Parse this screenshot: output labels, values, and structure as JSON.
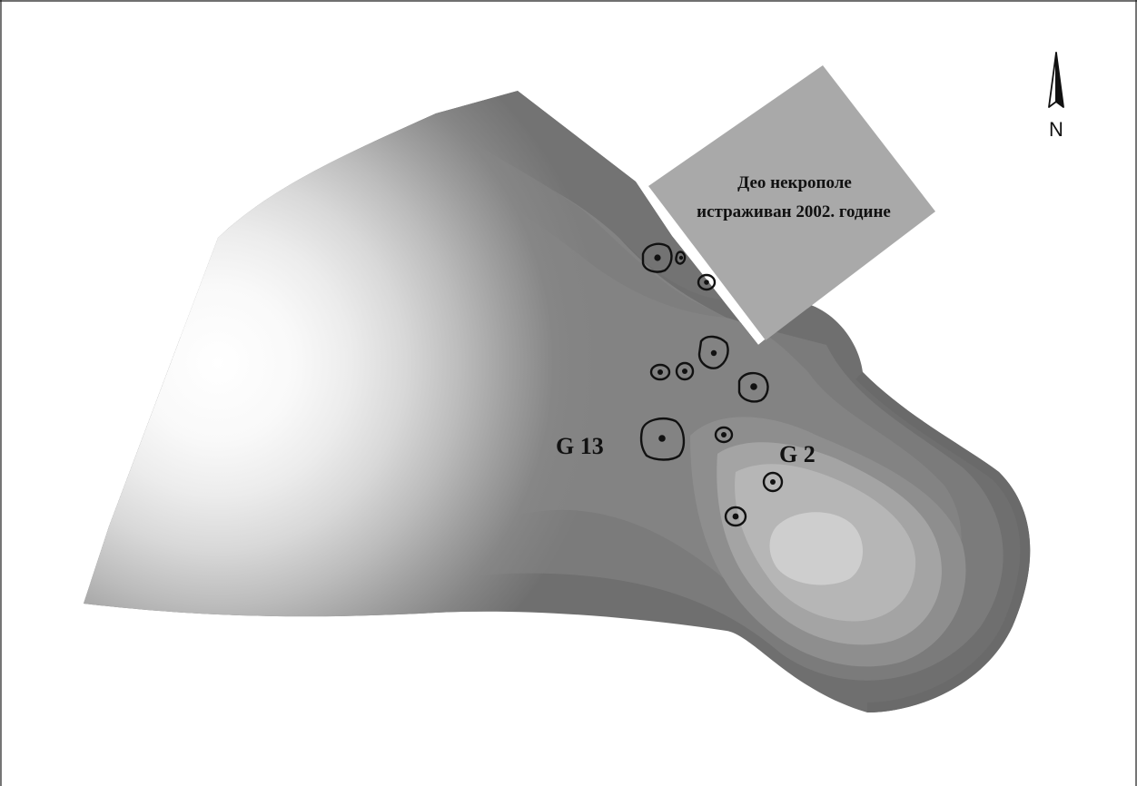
{
  "map": {
    "site_labels": {
      "g13": "G 13",
      "g2": "G 2"
    },
    "excavated_area": {
      "line1": "Део некрополе",
      "line2": "истраживан 2002. године"
    },
    "north_arrow": {
      "label": "N"
    },
    "colors": {
      "excavated_area_fill": "#a9a9a9",
      "terrain_darkest": "#696969",
      "terrain_mid": "#838383",
      "terrain_lightest": "#ffffff",
      "mound_outline": "#111111"
    }
  }
}
